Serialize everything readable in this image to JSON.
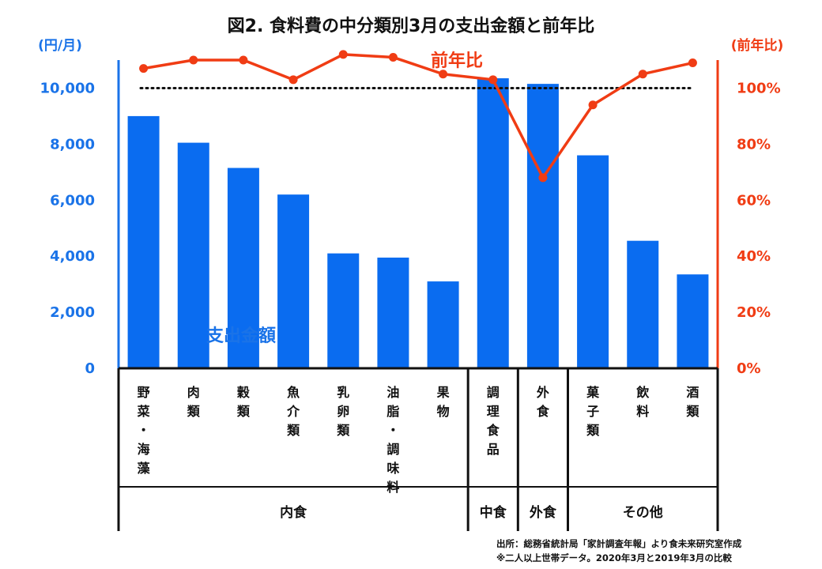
{
  "chart_data": {
    "type": "bar+line",
    "title": "図2. 食料費の中分類別3月の支出金額と前年比",
    "y_left_unit": "(円/月)",
    "y_right_unit": "(前年比)",
    "y_left_ticks": [
      "0",
      "2,000",
      "4,000",
      "6,000",
      "8,000",
      "10,000"
    ],
    "y_right_ticks": [
      "0%",
      "20%",
      "40%",
      "60%",
      "80%",
      "100%"
    ],
    "y_left_range": [
      0,
      11000
    ],
    "y_right_range": [
      0,
      110
    ],
    "categories": [
      "野菜・海藻",
      "肉類",
      "穀類",
      "魚介類",
      "乳卵類",
      "油脂・調味料",
      "果物",
      "調理食品",
      "外食",
      "菓子類",
      "飲料",
      "酒類"
    ],
    "category_labels": [
      "野菜・海藻",
      "肉類",
      "穀類",
      "魚介類",
      "乳卵類",
      "油脂・調味料",
      "果物",
      "調理食品",
      "外食",
      "菓子類",
      "飲料",
      "酒類"
    ],
    "series": [
      {
        "name": "支出金額",
        "type": "bar",
        "axis": "left",
        "color": "#0a6cf0",
        "values": [
          9000,
          8050,
          7150,
          6200,
          4100,
          3950,
          3100,
          10350,
          10150,
          7600,
          4550,
          3350
        ]
      },
      {
        "name": "前年比",
        "type": "line",
        "axis": "right",
        "color": "#f03c14",
        "values": [
          107,
          110,
          110,
          103,
          112,
          111,
          105,
          103,
          68,
          94,
          105,
          109
        ]
      }
    ],
    "reference_line": {
      "value": 100,
      "axis": "right",
      "style": "dotted",
      "color": "#111111"
    },
    "groups": [
      {
        "label": "内食",
        "from": 0,
        "to": 6
      },
      {
        "label": "中食",
        "from": 7,
        "to": 7
      },
      {
        "label": "外食",
        "from": 8,
        "to": 8
      },
      {
        "label": "その他",
        "from": 9,
        "to": 11
      }
    ],
    "bar_series_label": "支出金額",
    "line_series_label": "前年比",
    "left_axis_color": "#1a73e8",
    "right_axis_color": "#f03c14"
  },
  "notes": {
    "source": "出所：総務省統計局「家計調査年報」より食未来研究室作成",
    "footnote": "※二人以上世帯データ。2020年3月と2019年3月の比較"
  }
}
